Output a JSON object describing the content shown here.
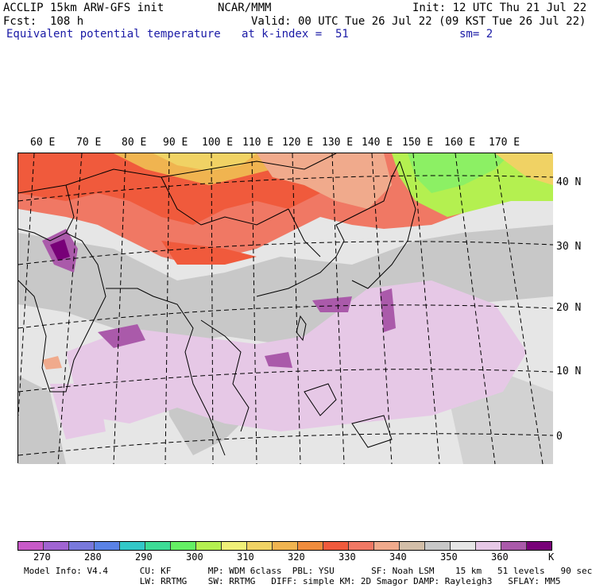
{
  "header": {
    "line1_left": "ACCLIP 15km ARW-GFS init",
    "line1_center": "NCAR/MMM",
    "line1_right": "Init: 12 UTC Thu 21 Jul 22",
    "line2_left": "Fcst:  108 h",
    "line2_right": "Valid: 00 UTC Tue 26 Jul 22 (09 KST Tue 26 Jul 22)",
    "field_name": "Equivalent potential temperature",
    "level": "at k-index =  51",
    "smoothing": "sm= 2"
  },
  "map": {
    "lon_labels": [
      "60 E",
      "70 E",
      "80 E",
      "90 E",
      "100 E",
      "110 E",
      "120 E",
      "130 E",
      "140 E",
      "150 E",
      "160 E",
      "170 E"
    ],
    "lat_labels": [
      "40 N",
      "30 N",
      "20 N",
      "10 N",
      "0"
    ]
  },
  "colorbar": {
    "colors": [
      "#c85ac8",
      "#a064d2",
      "#7878dc",
      "#5a82e6",
      "#32c8c8",
      "#3cdc96",
      "#64f064",
      "#b4f050",
      "#f0f078",
      "#f0d264",
      "#f0b450",
      "#f08c3c",
      "#f05a3c",
      "#f07864",
      "#f0aa8c",
      "#d2bea8",
      "#c8c8c8",
      "#e6e6e6",
      "#e6c8e6",
      "#aa5aaa",
      "#780078"
    ],
    "ticks": [
      "270",
      "280",
      "290",
      "300",
      "310",
      "320",
      "330",
      "340",
      "350",
      "360"
    ],
    "unit": "K"
  },
  "footer": {
    "line1": "Model Info: V4.4      CU: KF       MP: WDM 6class  PBL: YSU       SF: Noah LSM    15 km   51 levels   90 sec",
    "line2": "                      LW: RRTMG    SW: RRTMG   DIFF: simple KM: 2D Smagor DAMP: Rayleigh3   SFLAY: MM5"
  }
}
